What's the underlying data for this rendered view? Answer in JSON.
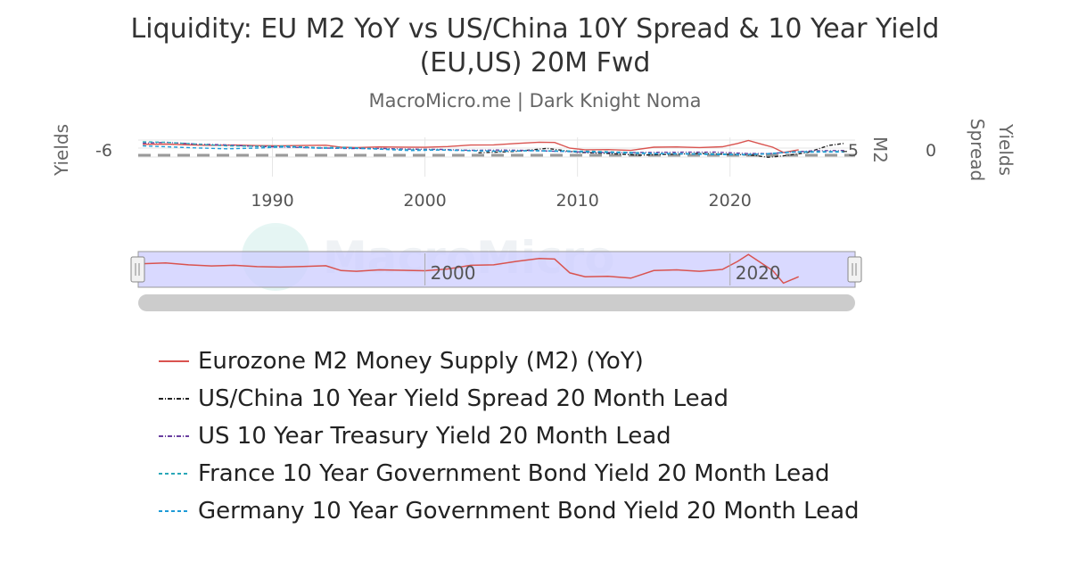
{
  "title_line1": "Liquidity: EU M2 YoY vs US/China 10Y Spread & 10 Year Yield",
  "title_line2": "(EU,US) 20M Fwd",
  "subtitle": "MacroMicro.me | Dark Knight Noma",
  "watermark": "MacroMicro",
  "colors": {
    "eu_m2": "#d9534f",
    "spread": "#222222",
    "us10y": "#6a3fa0",
    "france": "#2aa7b8",
    "germany": "#1e9bd7",
    "navigator_fill": "#ccccff",
    "grid": "#e6e6e6"
  },
  "chart_data": {
    "type": "line",
    "title": "Liquidity: EU M2 YoY vs US/China 10Y Spread & 10 Year Yield (EU,US) 20M Fwd",
    "subtitle": "MacroMicro.me | Dark Knight Noma",
    "xlim": [
      1981.2,
      2028.2
    ],
    "x_ticks": [
      "1990",
      "2000",
      "2010",
      "2020"
    ],
    "left_axis": {
      "label": "Yields",
      "ticks": [
        "-6"
      ]
    },
    "right_axis_1": {
      "label": "M2",
      "ticks": [
        "-5"
      ]
    },
    "right_axis_2": {
      "label": "Yields Spread",
      "ticks": [
        "0"
      ]
    },
    "grid": true,
    "legend_position": "bottom",
    "series": [
      {
        "name": "Eurozone M2 Money Supply (M2) (YoY)",
        "style": "solid",
        "x": [
          1981.5,
          1983,
          1984.5,
          1986,
          1987.5,
          1989,
          1990.5,
          1992,
          1993.5,
          1994.5,
          1995.5,
          1997,
          1998.5,
          2000,
          2001.5,
          2003,
          2004.5,
          2006,
          2007.5,
          2008.5,
          2009.5,
          2010.5,
          2012,
          2013.5,
          2015,
          2016.5,
          2018,
          2019.5,
          2020.5,
          2021.2,
          2022,
          2022.8,
          2023.5,
          2024.5
        ],
        "y": [
          7.5,
          7.8,
          7.0,
          6.5,
          6.8,
          6.2,
          6.0,
          6.3,
          6.6,
          4.5,
          4.2,
          4.8,
          4.6,
          4.4,
          5.2,
          6.8,
          7.0,
          8.5,
          9.8,
          9.5,
          3.5,
          1.8,
          2.0,
          1.2,
          4.5,
          4.8,
          4.2,
          5.0,
          8.5,
          11.5,
          8.0,
          4.5,
          -1.0,
          1.8
        ]
      },
      {
        "name": "US/China 10 Year Yield Spread 20 Month Lead",
        "style": "dash-dot",
        "x": [
          2003.5,
          2006,
          2008,
          2010,
          2012,
          2014,
          2016,
          2018,
          2020,
          2021.5,
          2022.5,
          2023.5,
          2025,
          2026.5,
          2027.5
        ],
        "y": [
          -1.0,
          -0.5,
          0.5,
          -0.8,
          -1.2,
          -1.8,
          -1.5,
          -1.2,
          -1.5,
          -1.8,
          -2.5,
          -2.0,
          -1.0,
          1.5,
          2.2
        ]
      },
      {
        "name": "US 10 Year Treasury Yield 20 Month Lead",
        "style": "dash-dot",
        "x": [
          1981.5,
          1983,
          1985,
          1987,
          1989,
          1991,
          1993,
          1995,
          1997,
          1999,
          2001,
          2003,
          2005,
          2007,
          2009,
          2011,
          2013,
          2015,
          2017,
          2019,
          2021,
          2022.5,
          2024,
          2025.5,
          2027.5
        ],
        "y": [
          12.5,
          13.5,
          11.5,
          10.5,
          8.8,
          8.0,
          7.2,
          6.5,
          6.6,
          5.8,
          5.5,
          4.5,
          4.8,
          4.3,
          3.2,
          2.2,
          2.0,
          2.2,
          2.4,
          2.5,
          1.0,
          0.8,
          2.5,
          4.0,
          4.3
        ]
      },
      {
        "name": "France 10 Year Government Bond Yield 20 Month Lead",
        "style": "dashed",
        "x": [
          1981.5,
          1983,
          1985,
          1987,
          1989,
          1991,
          1993,
          1995,
          1997,
          1999,
          2001,
          2003,
          2005,
          2007,
          2009,
          2011,
          2013,
          2015,
          2017,
          2019,
          2021,
          2022.5,
          2024,
          2025.5,
          2027.5
        ],
        "y": [
          14.0,
          13.5,
          11.5,
          9.5,
          9.0,
          9.2,
          7.5,
          7.8,
          6.0,
          5.0,
          5.0,
          4.2,
          3.6,
          4.2,
          3.8,
          3.4,
          2.4,
          1.0,
          0.8,
          0.5,
          -0.2,
          0.5,
          2.8,
          3.0,
          3.2
        ]
      },
      {
        "name": "Germany 10 Year Government Bond Yield 20 Month Lead",
        "style": "dashed",
        "x": [
          1981.5,
          1983,
          1985,
          1987,
          1989,
          1991,
          1993,
          1995,
          1997,
          1999,
          2001,
          2003,
          2005,
          2007,
          2009,
          2011,
          2013,
          2015,
          2017,
          2019,
          2021,
          2022.5,
          2024,
          2025.5,
          2027.5
        ],
        "y": [
          9.5,
          8.5,
          7.2,
          6.2,
          7.0,
          8.5,
          6.8,
          7.0,
          5.8,
          4.2,
          4.8,
          4.0,
          3.4,
          4.0,
          3.3,
          2.6,
          1.6,
          0.6,
          0.4,
          -0.3,
          -0.5,
          0.8,
          2.4,
          2.5,
          2.6
        ]
      }
    ]
  },
  "navigator": {
    "x_ticks": [
      "2000",
      "2020"
    ]
  },
  "legend": {
    "items": [
      {
        "label": "Eurozone M2 Money Supply (M2) (YoY)"
      },
      {
        "label": "US/China 10 Year Yield Spread 20 Month Lead"
      },
      {
        "label": "US 10 Year Treasury Yield 20 Month Lead"
      },
      {
        "label": "France 10 Year Government Bond Yield 20 Month Lead"
      },
      {
        "label": "Germany 10 Year Government Bond Yield 20 Month Lead"
      }
    ]
  }
}
